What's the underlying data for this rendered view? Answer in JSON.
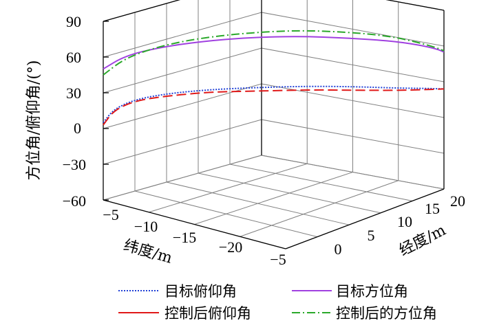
{
  "chart_data": {
    "type": "line3d",
    "ylabel": "方位角/俯仰角/(°)",
    "xlabel_left": "纬度/m",
    "xlabel_right": "经度/m",
    "z_ticks": [
      "90",
      "60",
      "30",
      "0",
      "−30",
      "−60"
    ],
    "lat_ticks": [
      "−5",
      "−10",
      "−15",
      "−20",
      "−5"
    ],
    "lon_ticks": [
      "0",
      "5",
      "10",
      "15",
      "20"
    ],
    "zlim": [
      -60,
      90
    ],
    "latlim": [
      -25,
      -5
    ],
    "lonlim": [
      -5,
      20
    ],
    "grid": true,
    "legend_position": "bottom",
    "series": [
      {
        "name": "目标俯仰角",
        "color": "#1f3fd6",
        "dash": "2,2",
        "values": [
          [
            -5.0,
            -5.0,
            5
          ],
          [
            -5.5,
            -4.0,
            16
          ],
          [
            -6.5,
            -2.0,
            23
          ],
          [
            -8.5,
            0.5,
            28
          ],
          [
            -11.0,
            3.5,
            31
          ],
          [
            -14.0,
            6.5,
            33
          ],
          [
            -17.0,
            10.0,
            33
          ],
          [
            -20.0,
            13.0,
            32
          ],
          [
            -22.5,
            16.0,
            29
          ],
          [
            -24.0,
            18.5,
            26
          ],
          [
            -25.0,
            20.0,
            24
          ]
        ]
      },
      {
        "name": "目标方位角",
        "color": "#a040e0",
        "dash": "",
        "values": [
          [
            -5.0,
            -5.0,
            50
          ],
          [
            -6.0,
            -3.0,
            60
          ],
          [
            -8.0,
            -0.5,
            67
          ],
          [
            -10.5,
            2.5,
            72
          ],
          [
            -13.5,
            6.0,
            75
          ],
          [
            -16.5,
            9.5,
            75
          ],
          [
            -19.5,
            12.5,
            73
          ],
          [
            -22.0,
            15.5,
            69
          ],
          [
            -23.5,
            18.0,
            63
          ],
          [
            -24.5,
            19.5,
            58
          ],
          [
            -25.0,
            20.0,
            55
          ]
        ]
      },
      {
        "name": "控制后俯仰角",
        "color": "#e01818",
        "dash": "14,6",
        "values": [
          [
            -5.0,
            -5.0,
            3
          ],
          [
            -5.5,
            -4.0,
            15
          ],
          [
            -6.5,
            -2.0,
            22
          ],
          [
            -8.5,
            0.5,
            26
          ],
          [
            -11.0,
            3.5,
            29
          ],
          [
            -14.0,
            6.5,
            30
          ],
          [
            -17.0,
            10.0,
            30
          ],
          [
            -20.0,
            13.0,
            29
          ],
          [
            -22.5,
            16.0,
            27
          ],
          [
            -24.0,
            18.5,
            25
          ],
          [
            -25.0,
            20.0,
            24
          ]
        ]
      },
      {
        "name": "控制后的方位角",
        "color": "#2aa82a",
        "dash": "12,4,2,4",
        "values": [
          [
            -5.0,
            -5.0,
            45
          ],
          [
            -6.0,
            -3.0,
            58
          ],
          [
            -8.0,
            -0.5,
            68
          ],
          [
            -10.5,
            2.5,
            75
          ],
          [
            -13.5,
            6.0,
            79
          ],
          [
            -16.5,
            9.5,
            80
          ],
          [
            -19.5,
            12.5,
            78
          ],
          [
            -22.0,
            15.5,
            73
          ],
          [
            -23.5,
            18.0,
            65
          ],
          [
            -24.5,
            19.5,
            59
          ],
          [
            -25.0,
            20.0,
            56
          ]
        ]
      }
    ]
  },
  "legend": [
    {
      "label": "目标俯仰角",
      "color": "#1f3fd6",
      "dash": "2,2"
    },
    {
      "label": "目标方位角",
      "color": "#a040e0",
      "dash": ""
    },
    {
      "label": "控制后俯仰角",
      "color": "#e01818",
      "dash": "14,6"
    },
    {
      "label": "控制后的方位角",
      "color": "#2aa82a",
      "dash": "12,4,2,4"
    }
  ]
}
